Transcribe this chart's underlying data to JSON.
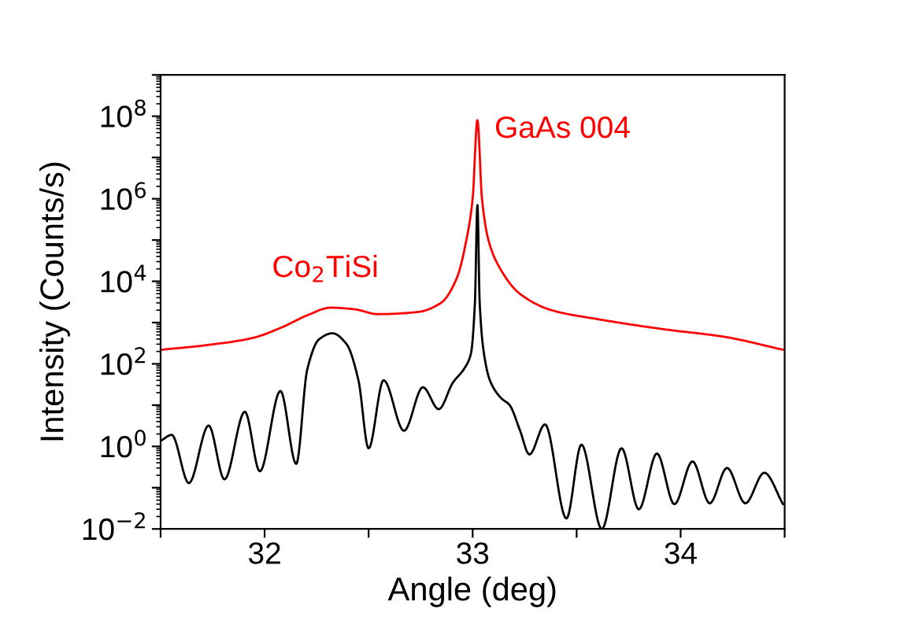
{
  "chart_data": {
    "type": "line",
    "xlabel": "Angle (deg)",
    "ylabel": "Intensity (Counts/s)",
    "log": "y",
    "xlim": [
      31.5,
      34.5
    ],
    "ylim": [
      0.01,
      1000000000
    ],
    "xticks": [
      {
        "value": 31.5,
        "label": null
      },
      32,
      {
        "value": 32.5,
        "label": null
      },
      33,
      {
        "value": 33.5,
        "label": null
      },
      34,
      {
        "value": 34.5,
        "label": null
      }
    ],
    "yticks": [
      {
        "value": 0.01,
        "label": "10$^{−2}$"
      },
      {
        "value": 0.1,
        "label": null
      },
      {
        "value": 1,
        "label": "10$^{0}$"
      },
      {
        "value": 10,
        "label": null
      },
      {
        "value": 100,
        "label": "10$^{2}$"
      },
      {
        "value": 1000,
        "label": null
      },
      {
        "value": 10000,
        "label": "10$^{4}$"
      },
      {
        "value": 100000,
        "label": null
      },
      {
        "value": 1000000,
        "label": "10$^{6}$"
      },
      {
        "value": 10000000,
        "label": null
      },
      {
        "value": 100000000,
        "label": "10$^{8}$"
      },
      {
        "value": 1000000000,
        "label": null
      }
    ],
    "grid": false,
    "marker": "none",
    "line_style": "solid",
    "series": [
      {
        "color": "#ff0000",
        "x": [
          31.504,
          31.712,
          31.939,
          32.091,
          32.205,
          32.318,
          32.432,
          32.545,
          32.735,
          32.848,
          32.924,
          32.97,
          33.0,
          33.023,
          33.045,
          33.076,
          33.133,
          33.227,
          33.379,
          33.606,
          33.909,
          34.212,
          34.492
        ],
        "values": [
          220,
          280,
          420,
          800,
          1500,
          2300,
          2100,
          1600,
          1800,
          3000,
          12000,
          100000,
          1000000,
          80000000,
          1000000,
          100000,
          20000,
          5000,
          2000,
          1200,
          700,
          450,
          220
        ]
      },
      {
        "color": "#000000",
        "x": [
          31.504,
          31.553,
          31.636,
          31.731,
          31.807,
          31.905,
          31.977,
          32.076,
          32.152,
          32.205,
          32.261,
          32.326,
          32.394,
          32.451,
          32.5,
          32.572,
          32.67,
          32.761,
          32.837,
          32.905,
          32.962,
          32.992,
          33.011,
          33.023,
          33.034,
          33.053,
          33.083,
          33.136,
          33.178,
          33.227,
          33.273,
          33.348,
          33.451,
          33.523,
          33.621,
          33.716,
          33.799,
          33.886,
          33.97,
          34.057,
          34.14,
          34.223,
          34.311,
          34.402,
          34.492
        ],
        "values": [
          1.4,
          1.9,
          0.13,
          3.2,
          0.16,
          6.9,
          0.25,
          22,
          0.38,
          73,
          390,
          550,
          300,
          40,
          0.9,
          40,
          2.4,
          27,
          8,
          35,
          80,
          180,
          3000,
          700000,
          3000,
          200,
          40,
          15,
          10,
          2.5,
          0.64,
          3.4,
          0.018,
          1.1,
          0.01,
          0.9,
          0.03,
          0.67,
          0.04,
          0.43,
          0.042,
          0.3,
          0.042,
          0.23,
          0.04
        ]
      }
    ],
    "annotations": [
      "Co$_{2}$TiSi",
      "GaAs 004"
    ]
  }
}
